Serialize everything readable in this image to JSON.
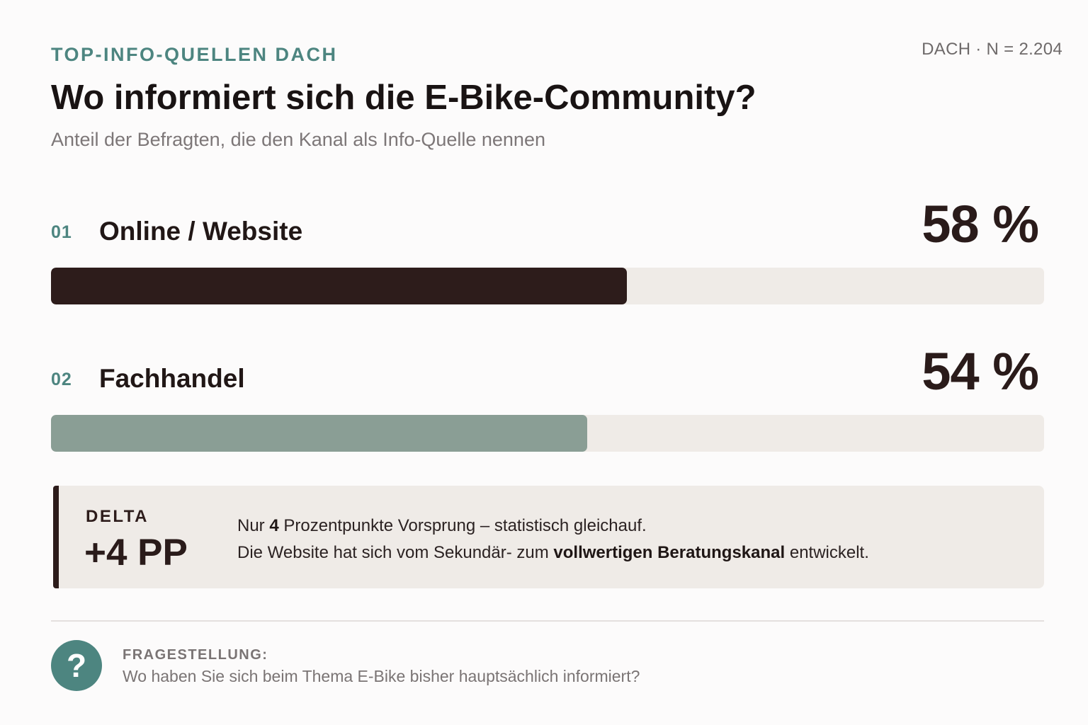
{
  "header": {
    "eyebrow": "TOP-INFO-QUELLEN DACH",
    "meta": "DACH · N = 2.204",
    "title": "Wo informiert sich die E-Bike-Community?",
    "subtitle": "Anteil der Befragten, die den Kanal als Info-Quelle nennen"
  },
  "chart_data": {
    "type": "bar",
    "orientation": "horizontal",
    "title": "Wo informiert sich die E-Bike-Community?",
    "subtitle": "Anteil der Befragten, die den Kanal als Info-Quelle nennen",
    "categories": [
      "Online / Website",
      "Fachhandel"
    ],
    "ranks": [
      "01",
      "02"
    ],
    "values": [
      58,
      54
    ],
    "value_labels": [
      "58 %",
      "54 %"
    ],
    "unit": "%",
    "xlim": [
      0,
      100
    ],
    "bar_colors": [
      "#2d1c1b",
      "#8a9e95"
    ],
    "track_color": "#efebe7"
  },
  "callout": {
    "label": "DELTA",
    "value": "+4 PP",
    "line1_pre": "Nur ",
    "line1_bold": "4",
    "line1_post": " Prozentpunkte Vorsprung – statistisch gleichauf.",
    "line2_pre": "Die Website hat sich vom Sekundär- zum ",
    "line2_bold": "vollwertigen Beratungskanal",
    "line2_post": " entwickelt."
  },
  "footer": {
    "icon": "question-icon",
    "icon_glyph": "?",
    "label": "FRAGESTELLUNG:",
    "question": "Wo haben Sie sich beim Thema E-Bike bisher hauptsächlich informiert?"
  },
  "colors": {
    "accent": "#4d8580",
    "dark": "#2d1c1b",
    "muted_bar": "#8a9e95",
    "panel": "#efebe7"
  }
}
